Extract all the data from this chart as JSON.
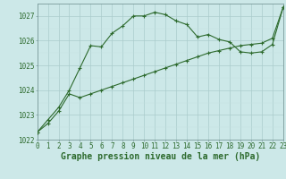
{
  "title": "Graphe pression niveau de la mer (hPa)",
  "xlabel_hours": [
    0,
    1,
    2,
    3,
    4,
    5,
    6,
    7,
    8,
    9,
    10,
    11,
    12,
    13,
    14,
    15,
    16,
    17,
    18,
    19,
    20,
    21,
    22,
    23
  ],
  "line1_x": [
    0,
    1,
    2,
    3,
    4,
    5,
    6,
    7,
    8,
    9,
    10,
    11,
    12,
    13,
    14,
    15,
    16,
    17,
    18,
    19,
    20,
    21,
    22,
    23
  ],
  "line1_y": [
    1022.3,
    1022.8,
    1023.3,
    1024.0,
    1024.9,
    1025.8,
    1025.75,
    1026.3,
    1026.6,
    1027.0,
    1027.0,
    1027.15,
    1027.05,
    1026.8,
    1026.65,
    1026.15,
    1026.25,
    1026.05,
    1025.95,
    1025.55,
    1025.5,
    1025.55,
    1025.85,
    1027.35
  ],
  "line2_x": [
    0,
    1,
    2,
    3,
    4,
    5,
    6,
    7,
    8,
    9,
    10,
    11,
    12,
    13,
    14,
    15,
    16,
    17,
    18,
    19,
    20,
    21,
    22,
    23
  ],
  "line2_y": [
    1022.3,
    1022.65,
    1023.15,
    1023.85,
    1023.7,
    1023.85,
    1024.0,
    1024.15,
    1024.3,
    1024.45,
    1024.6,
    1024.75,
    1024.9,
    1025.05,
    1025.2,
    1025.35,
    1025.5,
    1025.6,
    1025.7,
    1025.8,
    1025.85,
    1025.9,
    1026.1,
    1027.35
  ],
  "ylim": [
    1022.0,
    1027.5
  ],
  "yticks": [
    1022,
    1023,
    1024,
    1025,
    1026,
    1027
  ],
  "line_color": "#2d6a2d",
  "bg_color": "#cce8e8",
  "grid_color_major": "#aacccc",
  "grid_color_minor": "#c4e0e0",
  "title_fontsize": 7,
  "tick_fontsize": 5.5,
  "marker": "P",
  "marker_size": 2.5,
  "linewidth": 0.8
}
